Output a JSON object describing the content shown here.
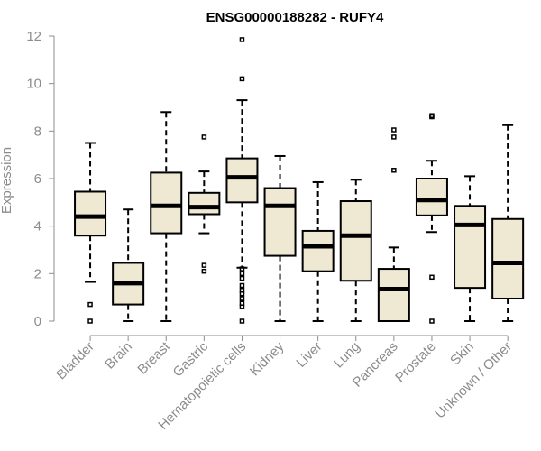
{
  "chart_data": {
    "type": "boxplot",
    "title": "ENSG00000188282 - RUFY4",
    "xlabel": "",
    "ylabel": "Expression",
    "ylim": [
      0,
      12
    ],
    "yticks": [
      0,
      2,
      4,
      6,
      8,
      10,
      12
    ],
    "box_color": "#efe8d2",
    "categories": [
      "Bladder",
      "Brain",
      "Breast",
      "Gastric",
      "Hematopoietic cells",
      "Kidney",
      "Liver",
      "Lung",
      "Pancreas",
      "Prostate",
      "Skin",
      "Unknown / Other"
    ],
    "boxes": [
      {
        "name": "Bladder",
        "min": 1.65,
        "q1": 3.6,
        "median": 4.4,
        "q3": 5.45,
        "max": 7.5,
        "outliers": [
          0.7,
          0.0
        ]
      },
      {
        "name": "Brain",
        "min": 0.0,
        "q1": 0.7,
        "median": 1.6,
        "q3": 2.45,
        "max": 4.7,
        "outliers": []
      },
      {
        "name": "Breast",
        "min": 0.0,
        "q1": 3.7,
        "median": 4.85,
        "q3": 6.25,
        "max": 8.8,
        "outliers": []
      },
      {
        "name": "Gastric",
        "min": 3.7,
        "q1": 4.5,
        "median": 4.8,
        "q3": 5.4,
        "max": 6.3,
        "outliers": [
          7.75,
          2.35,
          2.1
        ]
      },
      {
        "name": "Hematopoietic cells",
        "min": 2.25,
        "q1": 5.0,
        "median": 6.05,
        "q3": 6.85,
        "max": 9.3,
        "outliers": [
          11.85,
          10.2,
          2.2,
          2.0,
          1.8,
          1.5,
          1.3,
          1.15,
          0.95,
          0.75,
          0.6,
          0.0
        ]
      },
      {
        "name": "Kidney",
        "min": 0.0,
        "q1": 2.75,
        "median": 4.85,
        "q3": 5.6,
        "max": 6.95,
        "outliers": []
      },
      {
        "name": "Liver",
        "min": 0.0,
        "q1": 2.1,
        "median": 3.15,
        "q3": 3.8,
        "max": 5.85,
        "outliers": []
      },
      {
        "name": "Lung",
        "min": 0.0,
        "q1": 1.7,
        "median": 3.6,
        "q3": 5.05,
        "max": 5.95,
        "outliers": []
      },
      {
        "name": "Pancreas",
        "min": 0.0,
        "q1": 0.0,
        "median": 1.35,
        "q3": 2.2,
        "max": 3.1,
        "outliers": [
          8.05,
          7.75,
          6.35
        ]
      },
      {
        "name": "Prostate",
        "min": 3.75,
        "q1": 4.45,
        "median": 5.1,
        "q3": 6.0,
        "max": 6.75,
        "outliers": [
          8.65,
          8.6,
          1.85,
          0.0
        ]
      },
      {
        "name": "Skin",
        "min": 0.0,
        "q1": 1.4,
        "median": 4.05,
        "q3": 4.85,
        "max": 6.1,
        "outliers": []
      },
      {
        "name": "Unknown / Other",
        "min": 0.0,
        "q1": 0.95,
        "median": 2.45,
        "q3": 4.3,
        "max": 8.25,
        "outliers": []
      }
    ]
  }
}
